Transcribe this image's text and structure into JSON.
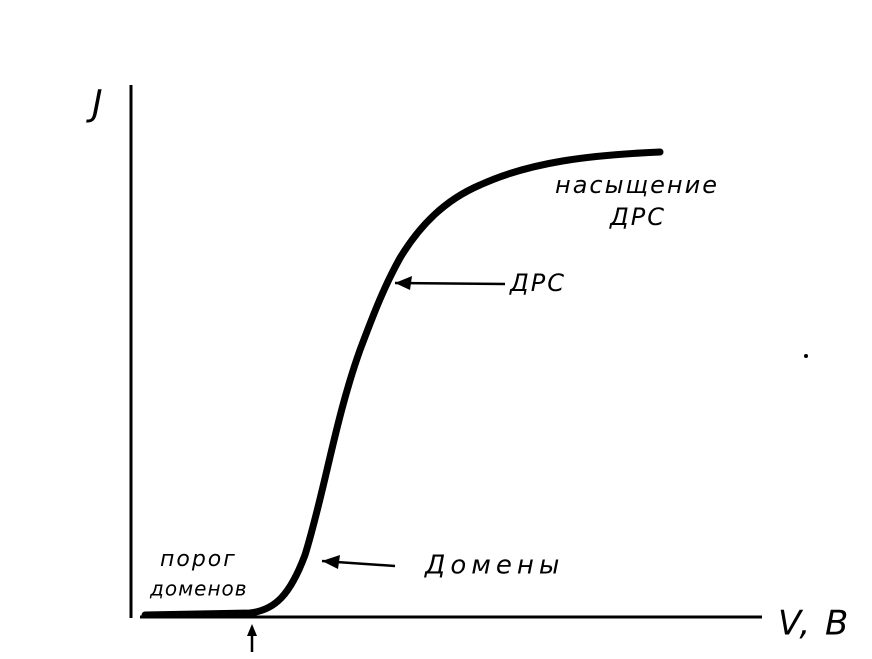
{
  "axes": {
    "y_label": "J",
    "x_label": "V, B"
  },
  "annotations": {
    "saturation": [
      "насыщение",
      "ДРС"
    ],
    "drs": "ДРС",
    "domains": "Домены",
    "threshold": [
      "порог",
      "доменов"
    ]
  }
}
